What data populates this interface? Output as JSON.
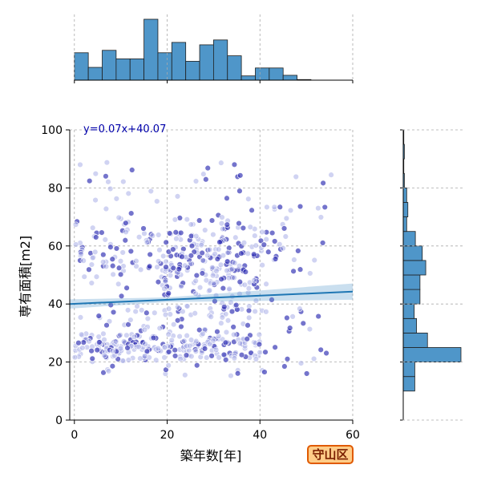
{
  "chart_data": {
    "type": "scatter",
    "xlabel": "築年数[年]",
    "ylabel": "専有面積[m2]",
    "xlim": [
      -1,
      60
    ],
    "ylim": [
      0,
      100
    ],
    "x_ticks": [
      0,
      20,
      40,
      60
    ],
    "y_ticks": [
      0,
      20,
      40,
      60,
      80,
      100
    ],
    "grid": true,
    "regression": {
      "label": "y=0.07x+40.07",
      "slope": 0.07,
      "intercept": 40.07
    },
    "badge": "守山区",
    "top_histogram": {
      "bin_edges": [
        0,
        3,
        6,
        9,
        12,
        15,
        18,
        21,
        24,
        27,
        30,
        33,
        36,
        39,
        42,
        45,
        48,
        51,
        54,
        57,
        60
      ],
      "relative_counts": [
        0.45,
        0.21,
        0.49,
        0.35,
        0.35,
        1.0,
        0.45,
        0.62,
        0.31,
        0.58,
        0.66,
        0.4,
        0.07,
        0.2,
        0.2,
        0.08,
        0.01,
        0.0,
        0.0,
        0.0
      ]
    },
    "right_histogram": {
      "bin_edges": [
        0,
        5,
        10,
        15,
        20,
        25,
        30,
        35,
        40,
        45,
        50,
        55,
        60,
        65,
        70,
        75,
        80,
        85,
        90,
        95,
        100
      ],
      "relative_counts": [
        0,
        0,
        0.2,
        0.2,
        1.0,
        0.42,
        0.23,
        0.19,
        0.29,
        0.29,
        0.39,
        0.33,
        0.21,
        0.06,
        0.08,
        0.06,
        0.02,
        0.01,
        0.02,
        0.01
      ]
    },
    "scatter_seed": 17
  }
}
